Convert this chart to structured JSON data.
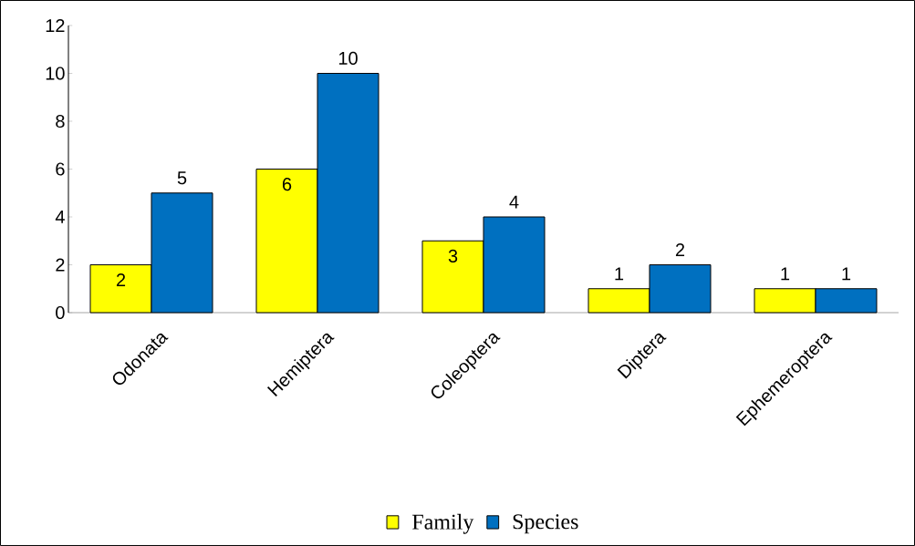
{
  "chart_data": {
    "type": "bar",
    "categories": [
      "Odonata",
      "Hemiptera",
      "Coleoptera",
      "Diptera",
      "Ephemeroptera"
    ],
    "series": [
      {
        "name": "Family",
        "color": "#ffff00",
        "values": [
          2,
          6,
          3,
          1,
          1
        ]
      },
      {
        "name": "Species",
        "color": "#0070c0",
        "values": [
          5,
          10,
          4,
          2,
          1
        ]
      }
    ],
    "ylim": [
      0,
      12
    ],
    "yticks": [
      0,
      2,
      4,
      6,
      8,
      10,
      12
    ],
    "data_labels": true,
    "grid": false,
    "legend": "bottom"
  }
}
